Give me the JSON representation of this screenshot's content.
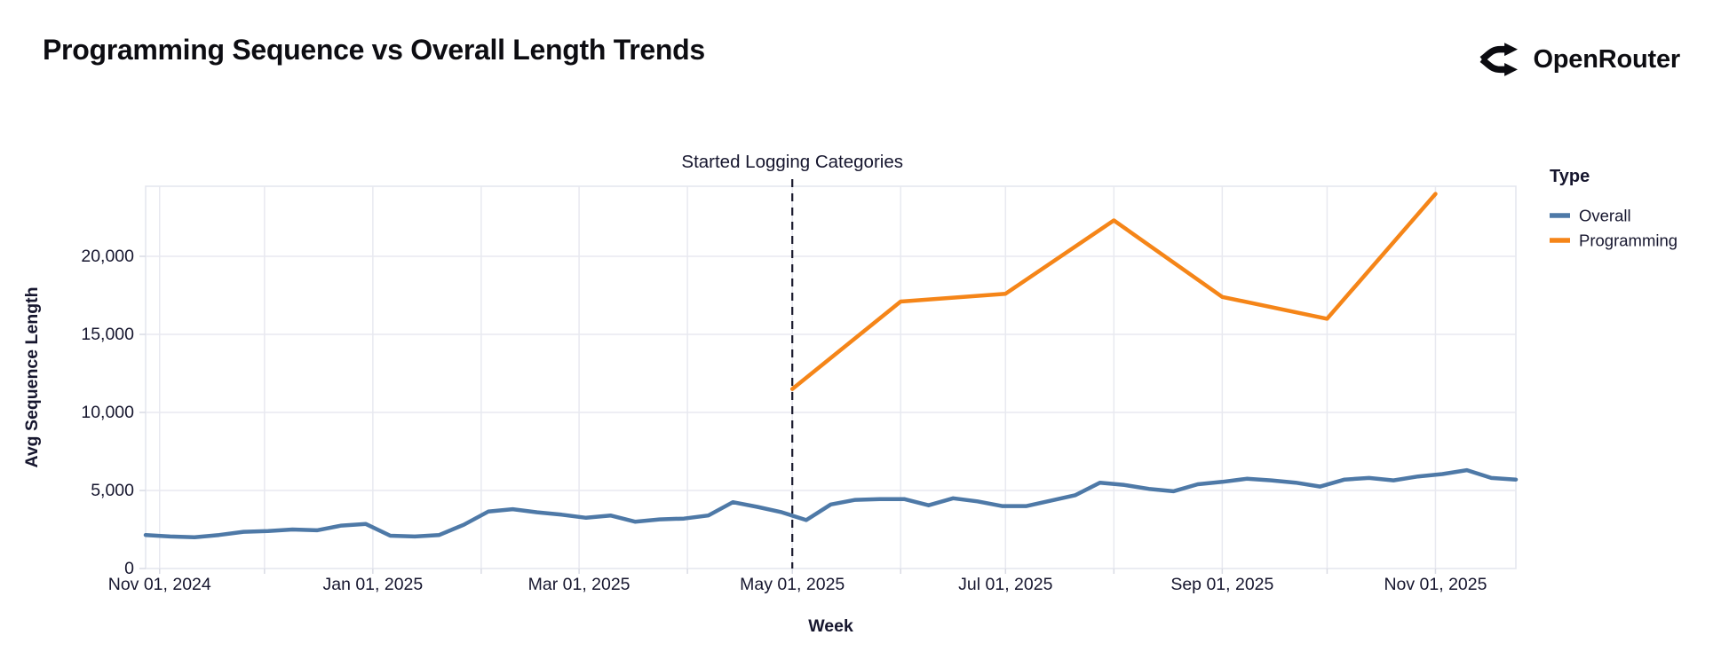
{
  "header": {
    "title": "Programming Sequence vs Overall Length Trends",
    "brand": "OpenRouter"
  },
  "chart_data": {
    "type": "line",
    "title": "Programming Sequence vs Overall Length Trends",
    "xlabel": "Week",
    "ylabel": "Avg Sequence Length",
    "x_domain_days": 392,
    "x_start": "Oct 28, 2024",
    "ylim": [
      0,
      24500
    ],
    "grid": true,
    "yticks": [
      0,
      5000,
      10000,
      15000,
      20000
    ],
    "ytick_labels": [
      "0",
      "5,000",
      "10,000",
      "15,000",
      "20,000"
    ],
    "months": [
      {
        "day": 4,
        "label": "Nov 01, 2024"
      },
      {
        "day": 34,
        "label": null
      },
      {
        "day": 65,
        "label": "Jan 01, 2025"
      },
      {
        "day": 96,
        "label": null
      },
      {
        "day": 124,
        "label": "Mar 01, 2025"
      },
      {
        "day": 155,
        "label": null
      },
      {
        "day": 185,
        "label": "May 01, 2025"
      },
      {
        "day": 216,
        "label": null
      },
      {
        "day": 246,
        "label": "Jul 01, 2025"
      },
      {
        "day": 277,
        "label": null
      },
      {
        "day": 308,
        "label": "Sep 01, 2025"
      },
      {
        "day": 338,
        "label": null
      },
      {
        "day": 369,
        "label": "Nov 01, 2025"
      }
    ],
    "legend": {
      "title": "Type",
      "position": "top-right"
    },
    "annotation": {
      "label": "Started Logging Categories",
      "day": 185,
      "x_date": "May 01, 2025"
    },
    "series": [
      {
        "name": "Overall",
        "color": "#4e79a7",
        "x_days": [
          0,
          7,
          14,
          21,
          28,
          35,
          42,
          49,
          56,
          63,
          70,
          77,
          84,
          91,
          98,
          105,
          112,
          119,
          126,
          133,
          140,
          147,
          154,
          161,
          168,
          175,
          182,
          189,
          196,
          203,
          210,
          217,
          224,
          231,
          238,
          245,
          252,
          259,
          266,
          273,
          280,
          287,
          294,
          301,
          308,
          315,
          322,
          329,
          336,
          343,
          350,
          357,
          364,
          371,
          378,
          385,
          392
        ],
        "values": [
          2150,
          2050,
          2000,
          2150,
          2350,
          2400,
          2500,
          2450,
          2750,
          2850,
          2100,
          2050,
          2150,
          2800,
          3650,
          3800,
          3600,
          3450,
          3250,
          3400,
          3000,
          3150,
          3200,
          3400,
          4250,
          3950,
          3600,
          3100,
          4100,
          4400,
          4450,
          4450,
          4050,
          4500,
          4300,
          4000,
          4000,
          4350,
          4700,
          5500,
          5350,
          5100,
          4950,
          5400,
          5550,
          5750,
          5650,
          5500,
          5250,
          5700,
          5800,
          5650,
          5900,
          6050,
          6300,
          5800,
          5700
        ]
      },
      {
        "name": "Programming",
        "color": "#f58518",
        "x_days": [
          185,
          216,
          246,
          277,
          308,
          338,
          369
        ],
        "values": [
          11500,
          17100,
          17600,
          22300,
          17400,
          16000,
          24000
        ]
      }
    ],
    "colors": {
      "grid": "#e8e9f0",
      "border": "#e3e5ee",
      "tick": "#d9dbe4",
      "text": "#16162e",
      "annotation_line": "#1a1a2e"
    }
  }
}
